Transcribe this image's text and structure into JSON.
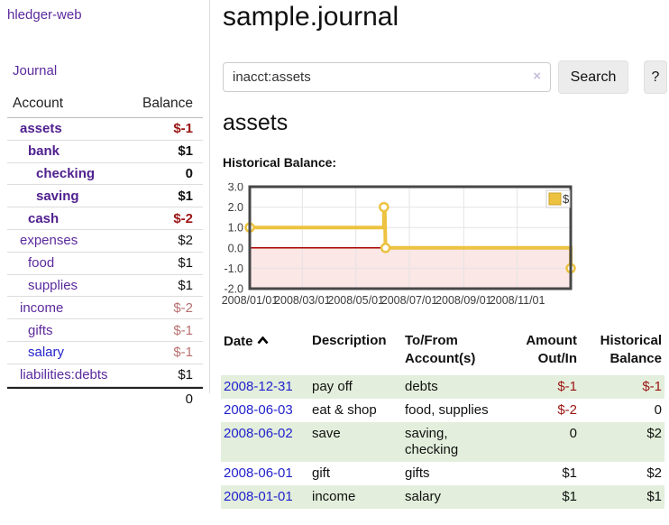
{
  "sidebar": {
    "brand": "hledger-web",
    "nav": [
      {
        "label": "Journal"
      }
    ],
    "accounts_table": {
      "headers": {
        "account": "Account",
        "balance": "Balance"
      },
      "rows": [
        {
          "account": "assets",
          "balance": "$-1",
          "depth": 1,
          "in_account": true,
          "balance_style": "negative-strong",
          "link_style": "purple"
        },
        {
          "account": "bank",
          "balance": "$1",
          "depth": 2,
          "in_account": true,
          "balance_style": "plain",
          "link_style": "purple"
        },
        {
          "account": "checking",
          "balance": "0",
          "depth": 3,
          "in_account": true,
          "balance_style": "plain",
          "link_style": "purple"
        },
        {
          "account": "saving",
          "balance": "$1",
          "depth": 3,
          "in_account": true,
          "balance_style": "plain",
          "link_style": "purple"
        },
        {
          "account": "cash",
          "balance": "$-2",
          "depth": 2,
          "in_account": true,
          "balance_style": "negative-strong",
          "link_style": "purple"
        },
        {
          "account": "expenses",
          "balance": "$2",
          "depth": 1,
          "in_account": false,
          "balance_style": "plain",
          "link_style": "purple"
        },
        {
          "account": "food",
          "balance": "$1",
          "depth": 2,
          "in_account": false,
          "balance_style": "plain",
          "link_style": "purple"
        },
        {
          "account": "supplies",
          "balance": "$1",
          "depth": 2,
          "in_account": false,
          "balance_style": "plain",
          "link_style": "purple"
        },
        {
          "account": "income",
          "balance": "$-2",
          "depth": 1,
          "in_account": false,
          "balance_style": "negative-soft",
          "link_style": "purple"
        },
        {
          "account": "gifts",
          "balance": "$-1",
          "depth": 2,
          "in_account": false,
          "balance_style": "negative-soft",
          "link_style": "purple"
        },
        {
          "account": "salary",
          "balance": "$-1",
          "depth": 2,
          "in_account": false,
          "balance_style": "negative-soft",
          "link_style": "blue"
        },
        {
          "account": "liabilities:debts",
          "balance": "$1",
          "depth": 1,
          "in_account": false,
          "balance_style": "plain",
          "link_style": "purple"
        }
      ],
      "total": "0"
    }
  },
  "main": {
    "title": "sample.journal",
    "search": {
      "value": "inacct:assets",
      "clear_label": "×",
      "search_button": "Search",
      "help_button": "?"
    },
    "account_heading": "assets",
    "section_heading": "Historical Balance:"
  },
  "chart_data": {
    "type": "line",
    "title": "Historical Balance:",
    "xlabel": "",
    "ylabel": "",
    "ylim": [
      -2,
      3
    ],
    "y_ticks": [
      "3.0",
      "2.0",
      "1.0",
      "0.0",
      "-1.0",
      "-2.0"
    ],
    "x_ticks": [
      {
        "pos": 0.0,
        "label": "2008/01/01"
      },
      {
        "pos": 0.1639,
        "label": "2008/03/01"
      },
      {
        "pos": 0.3306,
        "label": "2008/05/01"
      },
      {
        "pos": 0.4973,
        "label": "2008/07/01"
      },
      {
        "pos": 0.6667,
        "label": "2008/09/01"
      },
      {
        "pos": 0.8333,
        "label": "2008/11/01"
      }
    ],
    "grid": true,
    "legend_position": "top-right",
    "series": [
      {
        "name": "$",
        "points_by_date": [
          [
            "2008-01-01",
            1
          ],
          [
            "2008-06-01",
            2
          ],
          [
            "2008-06-02",
            2
          ],
          [
            "2008-06-03",
            0
          ],
          [
            "2008-12-31",
            -1
          ]
        ],
        "steps": [
          [
            0,
            1
          ],
          [
            0.418,
            1
          ],
          [
            0.418,
            2
          ],
          [
            0.4205,
            2
          ],
          [
            0.423,
            0
          ],
          [
            1,
            0
          ],
          [
            1,
            -1
          ]
        ],
        "markers": [
          [
            0,
            1
          ],
          [
            0.418,
            2
          ],
          [
            0.423,
            0
          ],
          [
            1,
            -1
          ]
        ]
      }
    ],
    "colors": {
      "line": "#edc240",
      "negative_fill": "#fbe7e6",
      "zero_line": "#a80000"
    }
  },
  "register": {
    "columns": [
      {
        "label": "Date",
        "align": "left",
        "sorted_asc": true
      },
      {
        "label": "Description",
        "align": "left"
      },
      {
        "label": "To/From Account(s)",
        "align": "left"
      },
      {
        "label": "Amount Out/In",
        "align": "right"
      },
      {
        "label": "Historical Balance",
        "align": "right"
      }
    ],
    "rows": [
      {
        "date": "2008-12-31",
        "description": "pay off",
        "accounts": "debts",
        "amount": "$-1",
        "amount_negative": true,
        "balance": "$-1",
        "balance_negative": true,
        "highlight": true
      },
      {
        "date": "2008-06-03",
        "description": "eat & shop",
        "accounts": "food, supplies",
        "amount": "$-2",
        "amount_negative": true,
        "balance": "0",
        "balance_negative": false,
        "highlight": false
      },
      {
        "date": "2008-06-02",
        "description": "save",
        "accounts": "saving, checking",
        "amount": "0",
        "amount_negative": false,
        "balance": "$2",
        "balance_negative": false,
        "highlight": true
      },
      {
        "date": "2008-06-01",
        "description": "gift",
        "accounts": "gifts",
        "amount": "$1",
        "amount_negative": false,
        "balance": "$2",
        "balance_negative": false,
        "highlight": false
      },
      {
        "date": "2008-01-01",
        "description": "income",
        "accounts": "salary",
        "amount": "$1",
        "amount_negative": false,
        "balance": "$1",
        "balance_negative": false,
        "highlight": true
      }
    ]
  }
}
